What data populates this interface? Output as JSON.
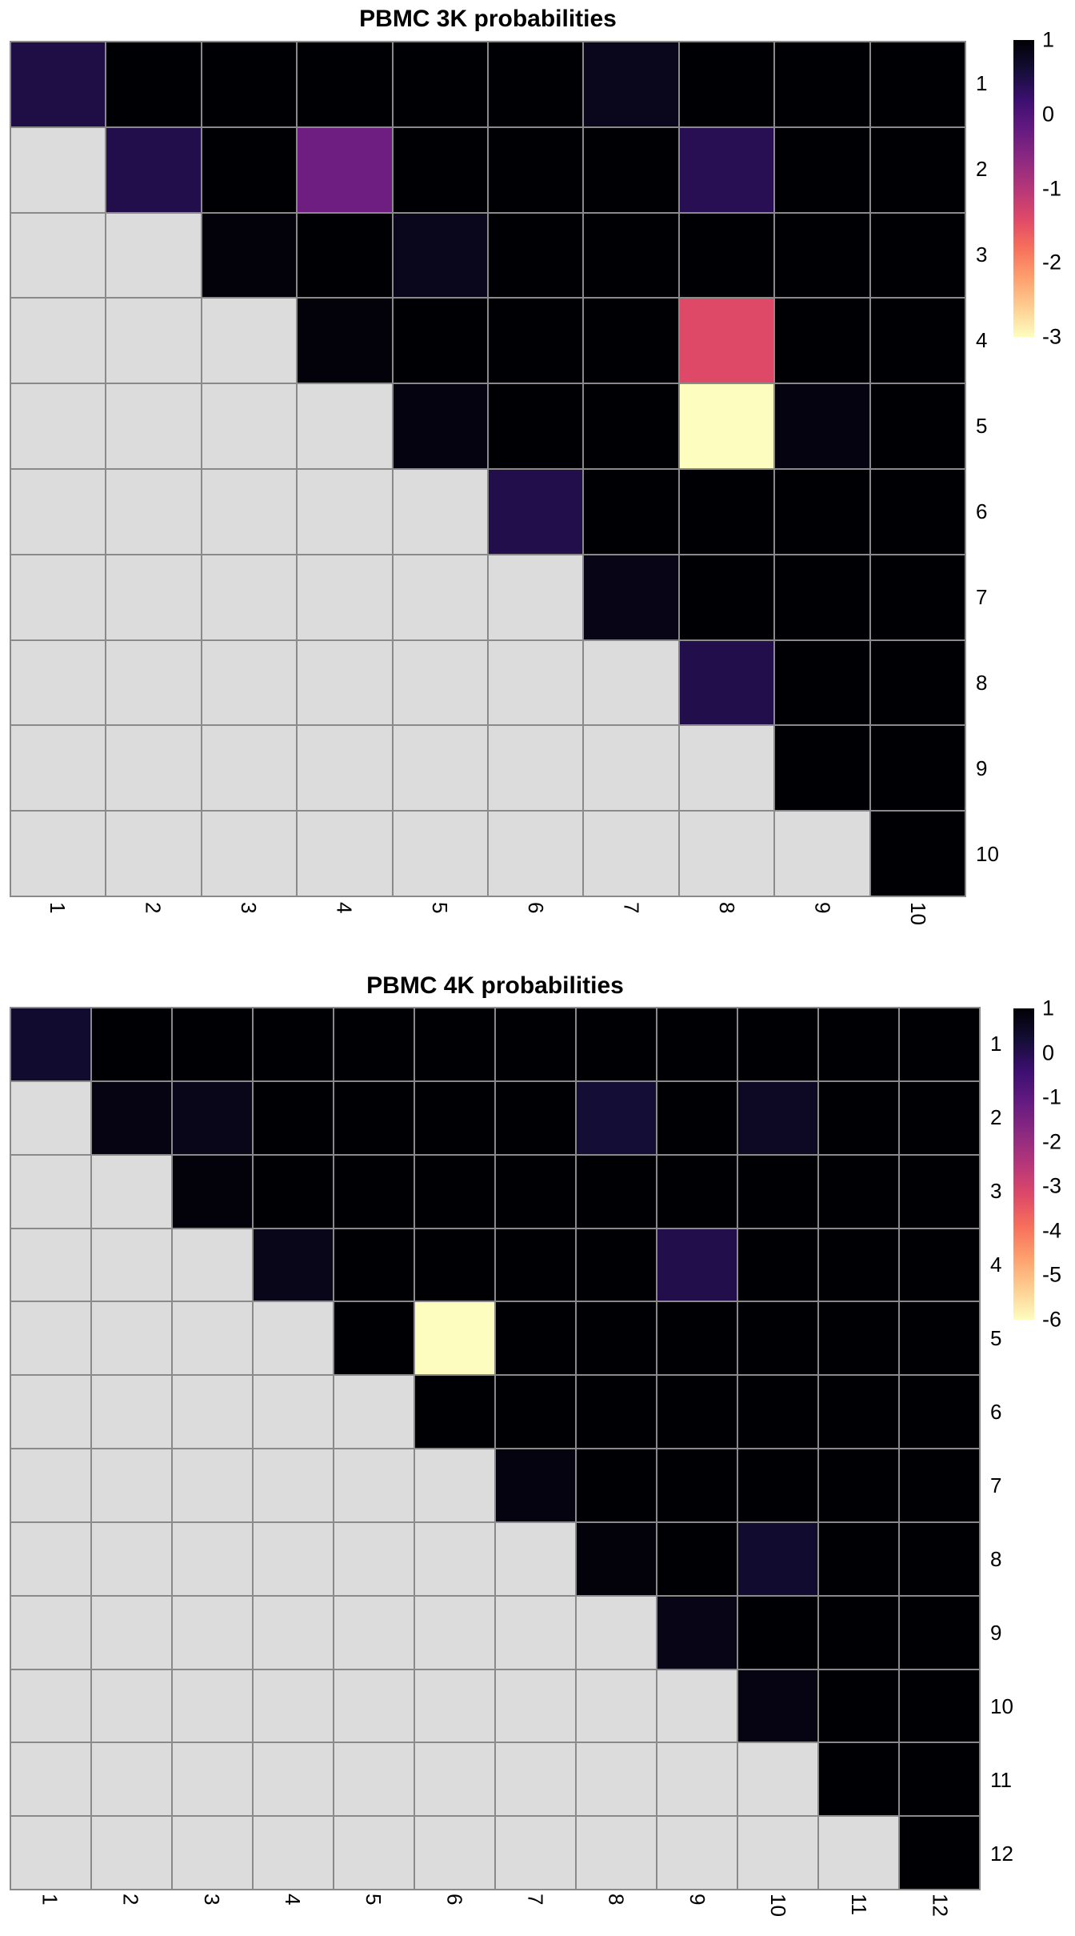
{
  "page": {
    "background": "#ffffff",
    "text_color": "#000000",
    "grid_line_color": "#8a8a8a",
    "na_color": "#dcdcdc"
  },
  "colormap": {
    "name": "magma-reversed-high-is-dark",
    "stops": [
      "#000004",
      "#140E36",
      "#3B0F70",
      "#641A80",
      "#8C2981",
      "#B63679",
      "#DE4968",
      "#F76F5C",
      "#FE9F6D",
      "#FECE91",
      "#FCFDBF"
    ]
  },
  "chart_data": [
    {
      "type": "heatmap",
      "title": "PBMC 3K probabilities",
      "row_labels": [
        "1",
        "2",
        "3",
        "4",
        "5",
        "6",
        "7",
        "8",
        "9",
        "10"
      ],
      "col_labels": [
        "1",
        "2",
        "3",
        "4",
        "5",
        "6",
        "7",
        "8",
        "9",
        "10"
      ],
      "value_range": {
        "max": 1,
        "min": -3
      },
      "colorbar_ticks": [
        1,
        0,
        -1,
        -2,
        -3
      ],
      "legend_position": "right",
      "na_lower_triangle": true,
      "values": [
        [
          0.5,
          1,
          1,
          1,
          1,
          1,
          0.8,
          1,
          1,
          1
        ],
        [
          null,
          0.45,
          1,
          -0.3,
          1,
          1,
          1,
          0.4,
          1,
          1
        ],
        [
          null,
          null,
          0.95,
          1,
          0.8,
          1,
          1,
          1,
          1,
          1
        ],
        [
          null,
          null,
          null,
          0.95,
          1,
          1,
          1,
          -1.4,
          1,
          1
        ],
        [
          null,
          null,
          null,
          null,
          0.9,
          1,
          1,
          -3,
          0.9,
          1
        ],
        [
          null,
          null,
          null,
          null,
          null,
          0.45,
          1,
          1,
          1,
          1
        ],
        [
          null,
          null,
          null,
          null,
          null,
          null,
          0.85,
          1,
          1,
          1
        ],
        [
          null,
          null,
          null,
          null,
          null,
          null,
          null,
          0.45,
          1,
          1
        ],
        [
          null,
          null,
          null,
          null,
          null,
          null,
          null,
          null,
          1,
          1
        ],
        [
          null,
          null,
          null,
          null,
          null,
          null,
          null,
          null,
          null,
          1
        ]
      ]
    },
    {
      "type": "heatmap",
      "title": "PBMC 4K probabilities",
      "row_labels": [
        "1",
        "2",
        "3",
        "4",
        "5",
        "6",
        "7",
        "8",
        "9",
        "10",
        "11",
        "12"
      ],
      "col_labels": [
        "1",
        "2",
        "3",
        "4",
        "5",
        "6",
        "7",
        "8",
        "9",
        "10",
        "11",
        "12"
      ],
      "value_range": {
        "max": 1,
        "min": -6
      },
      "colorbar_ticks": [
        1,
        0,
        -1,
        -2,
        -3,
        -4,
        -5,
        -6
      ],
      "legend_position": "right",
      "na_lower_triangle": true,
      "values": [
        [
          0.4,
          1,
          1,
          1,
          1,
          1,
          1,
          1,
          1,
          1,
          1,
          1
        ],
        [
          null,
          0.8,
          0.7,
          1,
          1,
          1,
          1,
          0.3,
          1,
          0.55,
          1,
          1
        ],
        [
          null,
          null,
          0.9,
          1,
          1,
          1,
          1,
          1,
          1,
          1,
          1,
          1
        ],
        [
          null,
          null,
          null,
          0.7,
          1,
          1,
          1,
          1,
          0.05,
          1,
          1,
          1
        ],
        [
          null,
          null,
          null,
          null,
          1,
          -6,
          1,
          1,
          1,
          1,
          1,
          1
        ],
        [
          null,
          null,
          null,
          null,
          null,
          1,
          1,
          1,
          1,
          1,
          1,
          1
        ],
        [
          null,
          null,
          null,
          null,
          null,
          null,
          0.85,
          1,
          1,
          1,
          1,
          1
        ],
        [
          null,
          null,
          null,
          null,
          null,
          null,
          null,
          0.9,
          1,
          0.4,
          1,
          1
        ],
        [
          null,
          null,
          null,
          null,
          null,
          null,
          null,
          null,
          0.75,
          1,
          1,
          1
        ],
        [
          null,
          null,
          null,
          null,
          null,
          null,
          null,
          null,
          null,
          0.8,
          1,
          1
        ],
        [
          null,
          null,
          null,
          null,
          null,
          null,
          null,
          null,
          null,
          null,
          1,
          1
        ],
        [
          null,
          null,
          null,
          null,
          null,
          null,
          null,
          null,
          null,
          null,
          null,
          1
        ]
      ]
    }
  ]
}
